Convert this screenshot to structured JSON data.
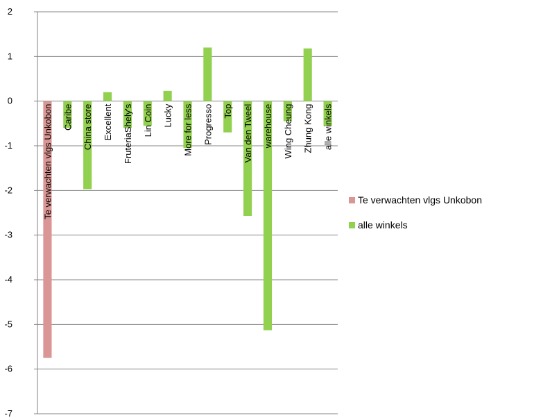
{
  "chart_data": {
    "type": "bar",
    "title": "",
    "xlabel": "",
    "ylabel": "",
    "ylim": [
      -7,
      2
    ],
    "yticks": [
      "2",
      "1",
      "0",
      "-1",
      "-2",
      "-3",
      "-4",
      "-5",
      "-6",
      "-7"
    ],
    "grid": true,
    "legend_position": "right",
    "categories": [
      "Te verwachten vlgs Unkobon",
      "Caribe",
      "China store",
      "Excellent",
      "FruteriaShely's",
      "Lin Coin",
      "Lucky",
      "More for less",
      "Progresso",
      "Top",
      "Van den Tweel",
      "warehouse",
      "Wing Cheung",
      "Zhung Kong",
      "alle winkels"
    ],
    "series": [
      {
        "name": "Te verwachten vlgs Unkobon",
        "color": "#d99694",
        "values": [
          -5.75,
          null,
          null,
          null,
          null,
          null,
          null,
          null,
          null,
          null,
          null,
          null,
          null,
          null,
          null
        ]
      },
      {
        "name": "alle winkels",
        "color": "#92d050",
        "values": [
          null,
          -0.6,
          -1.97,
          0.2,
          -0.6,
          -0.55,
          0.23,
          -1.05,
          1.2,
          -0.7,
          -2.57,
          -5.13,
          -0.45,
          1.18,
          -0.55
        ]
      }
    ]
  }
}
